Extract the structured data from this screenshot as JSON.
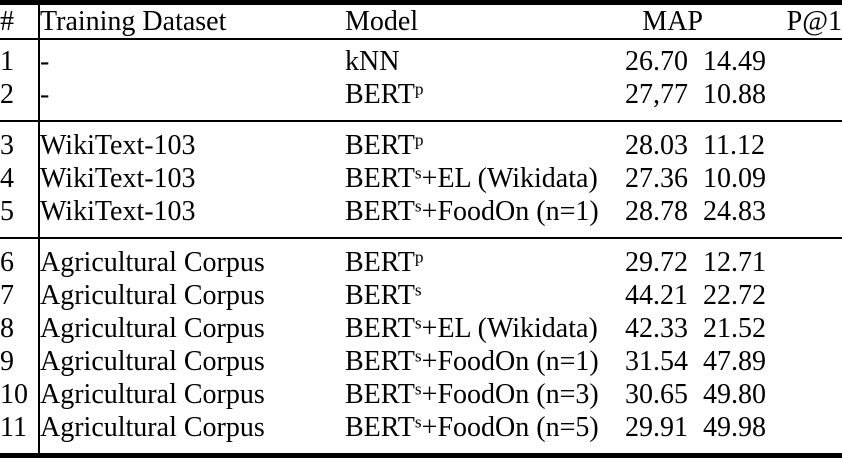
{
  "page": {
    "background_color": "#ffffff",
    "text_color": "#000000",
    "rule_color": "#000000"
  },
  "table": {
    "columns": [
      {
        "key": "num",
        "label": "#"
      },
      {
        "key": "dataset",
        "label": "Training Dataset"
      },
      {
        "key": "model",
        "label": "Model"
      },
      {
        "key": "map",
        "label": "MAP"
      },
      {
        "key": "p1",
        "label": "P@1"
      }
    ],
    "rows": [
      {
        "num": "1",
        "section": 1,
        "dataset": "-",
        "model": {
          "base": "kNN",
          "sup": "",
          "rest": ""
        },
        "map": "26.70",
        "p1": "14.49"
      },
      {
        "num": "2",
        "section": 1,
        "dataset": "-",
        "model": {
          "base": "BERT",
          "sup": "p",
          "rest": ""
        },
        "map": "27,77",
        "p1": "10.88"
      },
      {
        "num": "3",
        "section": 2,
        "dataset": "WikiText-103",
        "model": {
          "base": "BERT",
          "sup": "p",
          "rest": ""
        },
        "map": "28.03",
        "p1": "11.12"
      },
      {
        "num": "4",
        "section": 2,
        "dataset": "WikiText-103",
        "model": {
          "base": "BERT",
          "sup": "s",
          "rest": "+EL (Wikidata)"
        },
        "map": "27.36",
        "p1": "10.09"
      },
      {
        "num": "5",
        "section": 2,
        "dataset": "WikiText-103",
        "model": {
          "base": "BERT",
          "sup": "s",
          "rest": "+FoodOn (n=1)"
        },
        "map": "28.78",
        "p1": "24.83"
      },
      {
        "num": "6",
        "section": 3,
        "dataset": "Agricultural Corpus",
        "model": {
          "base": "BERT",
          "sup": "p",
          "rest": ""
        },
        "map": "29.72",
        "p1": "12.71"
      },
      {
        "num": "7",
        "section": 3,
        "dataset": "Agricultural Corpus",
        "model": {
          "base": "BERT",
          "sup": "s",
          "rest": ""
        },
        "map": "44.21",
        "p1": "22.72",
        "map_bold": true
      },
      {
        "num": "8",
        "section": 3,
        "dataset": "Agricultural Corpus",
        "model": {
          "base": "BERT",
          "sup": "s",
          "rest": "+EL (Wikidata)"
        },
        "map": "42.33",
        "p1": "21.52"
      },
      {
        "num": "9",
        "section": 3,
        "dataset": "Agricultural Corpus",
        "model": {
          "base": "BERT",
          "sup": "s",
          "rest": "+FoodOn (n=1)"
        },
        "map": "31.54",
        "p1": "47.89"
      },
      {
        "num": "10",
        "section": 3,
        "dataset": "Agricultural Corpus",
        "model": {
          "base": "BERT",
          "sup": "s",
          "rest": "+FoodOn (n=3)"
        },
        "map": "30.65",
        "p1": "49.80"
      },
      {
        "num": "11",
        "section": 3,
        "dataset": "Agricultural Corpus",
        "model": {
          "base": "BERT",
          "sup": "s",
          "rest": "+FoodOn (n=5)"
        },
        "map": "29.91",
        "p1": "49.98",
        "p1_bold": true
      }
    ]
  }
}
